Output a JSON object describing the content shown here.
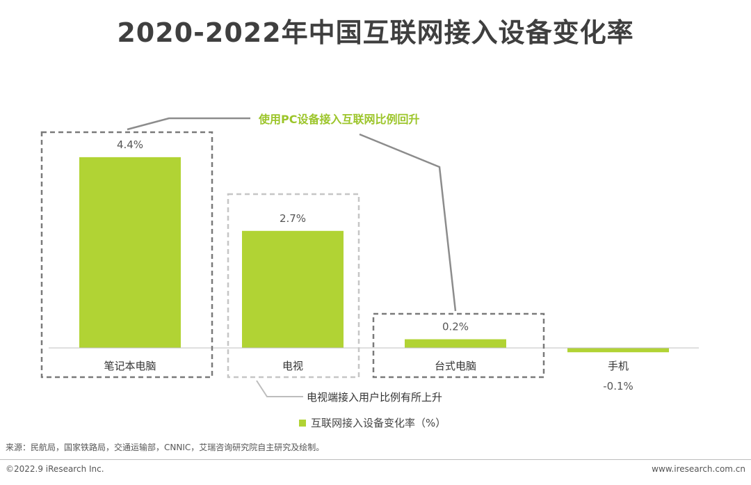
{
  "title": "2020-2022年中国互联网接入设备变化率",
  "chart_data": {
    "type": "bar",
    "title": "2020-2022年中国互联网接入设备变化率",
    "categories": [
      "笔记本电脑",
      "电视",
      "台式电脑",
      "手机"
    ],
    "series": [
      {
        "name": "互联网接入设备变化率（%）",
        "values": [
          4.4,
          2.7,
          0.2,
          -0.1
        ]
      }
    ],
    "value_labels": [
      "4.4%",
      "2.7%",
      "0.2%",
      "-0.1%"
    ],
    "ylim": [
      -0.1,
      4.4
    ],
    "grid": false,
    "legend_position": "bottom",
    "bar_color": "#b1d334",
    "annotations": [
      {
        "text": "使用PC设备接入互联网比例回升",
        "color": "#9cc52a",
        "targets": [
          "笔记本电脑",
          "台式电脑"
        ]
      },
      {
        "text": "电视端接入用户比例有所上升",
        "color": "#333333",
        "targets": [
          "电视"
        ]
      }
    ]
  },
  "legend": {
    "label": "互联网接入设备变化率（%）",
    "color": "#b1d334"
  },
  "source": "来源：民航局，国家铁路局，交通运输部，CNNIC，艾瑞咨询研究院自主研究及绘制。",
  "footer": {
    "copyright": "©2022.9 iResearch Inc.",
    "website": "www.iresearch.com.cn"
  }
}
